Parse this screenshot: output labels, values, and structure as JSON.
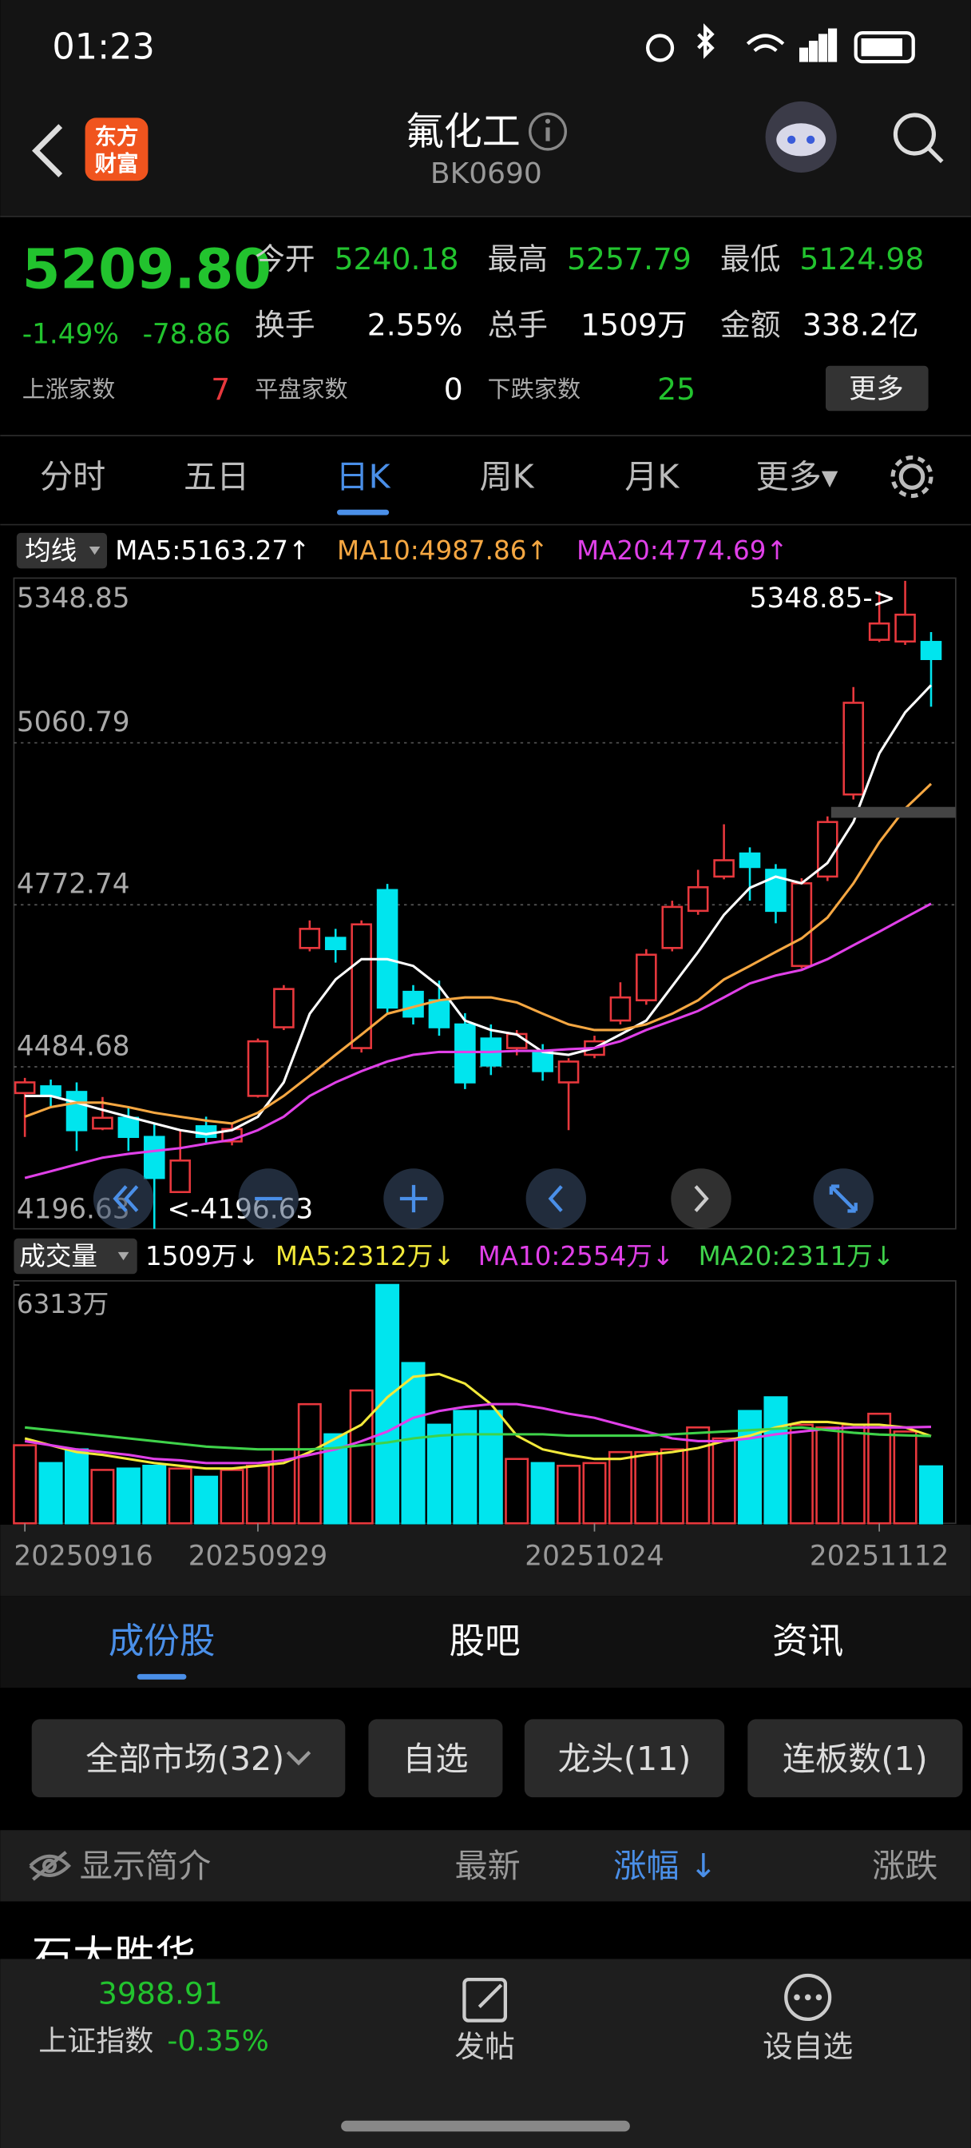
{
  "status_bar": {
    "time": "01:23"
  },
  "header": {
    "logo": [
      "东方",
      "财富"
    ],
    "title": "氟化工",
    "code": "BK0690"
  },
  "quote": {
    "price": "5209.80",
    "change_pct": "-1.49%",
    "change": "-78.86",
    "fields": [
      {
        "label": "今开",
        "value": "5240.18"
      },
      {
        "label": "最高",
        "value": "5257.79"
      },
      {
        "label": "最低",
        "value": "5124.98"
      },
      {
        "label": "换手",
        "value": "2.55%"
      },
      {
        "label": "总手",
        "value": "1509万"
      },
      {
        "label": "金额",
        "value": "338.2亿"
      }
    ],
    "breadth": [
      {
        "label": "上涨家数",
        "value": "7"
      },
      {
        "label": "平盘家数",
        "value": "0"
      },
      {
        "label": "下跌家数",
        "value": "25"
      }
    ],
    "more": "更多"
  },
  "period_tabs": {
    "items": [
      "分时",
      "五日",
      "日K",
      "周K",
      "月K",
      "更多▾"
    ],
    "active": 2
  },
  "chart_data": [
    {
      "type": "candlestick",
      "ma_button": "均线",
      "up_color": "#e8383d",
      "down_color": "#00e5ee",
      "ylim": [
        4196.63,
        5348.85
      ],
      "yticks": [
        5348.85,
        5060.79,
        4772.74,
        4484.68,
        4196.63
      ],
      "grid": true,
      "open": [
        4438,
        4450,
        4440,
        4375,
        4394,
        4360,
        4262,
        4379,
        4352,
        4433,
        4555,
        4696,
        4714,
        4518,
        4799,
        4618,
        4603,
        4560,
        4535,
        4518,
        4511,
        4457,
        4506,
        4567,
        4603,
        4696,
        4762,
        4823,
        4864,
        4835,
        4664,
        4823,
        4969,
        5244,
        5241,
        5240.18
      ],
      "high": [
        4465,
        4462,
        4457,
        4431,
        4413,
        4384,
        4372,
        4396,
        4384,
        4535,
        4630,
        4745,
        4730,
        4745,
        4810,
        4630,
        4638,
        4580,
        4560,
        4550,
        4525,
        4500,
        4540,
        4635,
        4694,
        4780,
        4835,
        4916,
        4875,
        4845,
        4820,
        4930,
        5160,
        5330,
        5348.85,
        5257.79
      ],
      "low": [
        4360,
        4413,
        4335,
        4372,
        4335,
        4196.63,
        4262,
        4350,
        4345,
        4430,
        4550,
        4690,
        4670,
        4510,
        4580,
        4560,
        4540,
        4445,
        4470,
        4505,
        4460,
        4372,
        4500,
        4560,
        4595,
        4690,
        4755,
        4818,
        4780,
        4740,
        4660,
        4815,
        4960,
        5240,
        5235,
        5124.98
      ],
      "close": [
        4457,
        4433,
        4372,
        4394,
        4360,
        4287,
        4318,
        4360,
        4374,
        4530,
        4623,
        4730,
        4694,
        4738,
        4590,
        4574,
        4555,
        4457,
        4487,
        4543,
        4477,
        4494,
        4530,
        4608,
        4684,
        4769,
        4804,
        4852,
        4840,
        4762,
        4811,
        4920,
        5132,
        5273,
        5288.66,
        5209.8
      ],
      "series": [
        {
          "name": "MA5",
          "legend": "MA5:5163.27↑",
          "color": "#ffffff",
          "values": [
            4433,
            4433,
            4421,
            4408,
            4396,
            4384,
            4372,
            4365,
            4372,
            4396,
            4457,
            4579,
            4640,
            4676,
            4676,
            4664,
            4628,
            4567,
            4550,
            4542,
            4511,
            4506,
            4518,
            4542,
            4567,
            4628,
            4689,
            4755,
            4803,
            4823,
            4811,
            4847,
            4920,
            5042,
            5115,
            5163.27
          ]
        },
        {
          "name": "MA10",
          "legend": "MA10:4987.86↑",
          "color": "#f5a742",
          "values": [
            4396,
            4413,
            4421,
            4421,
            4413,
            4403,
            4396,
            4389,
            4384,
            4403,
            4433,
            4469,
            4506,
            4542,
            4579,
            4591,
            4603,
            4608,
            4608,
            4599,
            4579,
            4560,
            4550,
            4550,
            4560,
            4579,
            4603,
            4640,
            4664,
            4689,
            4713,
            4750,
            4811,
            4884,
            4944,
            4987.86
          ]
        },
        {
          "name": "MA20",
          "legend": "MA20:4774.69↑",
          "color": "#e040e8",
          "values": [
            4287,
            4299,
            4311,
            4323,
            4330,
            4335,
            4340,
            4348,
            4355,
            4372,
            4396,
            4433,
            4457,
            4477,
            4494,
            4506,
            4511,
            4511,
            4511,
            4513,
            4513,
            4516,
            4518,
            4530,
            4550,
            4567,
            4584,
            4608,
            4633,
            4647,
            4657,
            4676,
            4701,
            4725,
            4750,
            4774.69
          ]
        }
      ],
      "annotations": [
        {
          "text": "5348.85->"
        },
        {
          "text": "<-4196.63"
        }
      ]
    },
    {
      "type": "bar",
      "button": "成交量",
      "current_label": "1509万↓",
      "ylim": [
        0,
        6313
      ],
      "yticks": [
        {
          "value": 6313,
          "label": "6313万"
        }
      ],
      "categories": [
        "20250916",
        null,
        null,
        null,
        null,
        null,
        null,
        null,
        null,
        "20250929",
        null,
        null,
        null,
        null,
        null,
        null,
        null,
        null,
        null,
        null,
        null,
        null,
        "20251024",
        null,
        null,
        null,
        null,
        null,
        null,
        null,
        null,
        null,
        null,
        "20251112",
        null,
        null
      ],
      "values": [
        2068,
        1596,
        1959,
        1415,
        1451,
        1524,
        1451,
        1234,
        1415,
        1524,
        1959,
        3156,
        2358,
        3519,
        6313,
        4245,
        2612,
        2975,
        2975,
        1705,
        1596,
        1524,
        1596,
        1887,
        1887,
        1959,
        2540,
        2249,
        2975,
        3338,
        2612,
        2540,
        2612,
        2902,
        2431,
        1509
      ],
      "series": [
        {
          "name": "MA5",
          "legend": "MA5:2312万↓",
          "color": "#f2e93a",
          "values": [
            2249,
            2068,
            1887,
            1814,
            1705,
            1596,
            1524,
            1451,
            1451,
            1524,
            1596,
            1887,
            2249,
            2612,
            3338,
            3882,
            3955,
            3701,
            3156,
            2322,
            1959,
            1814,
            1705,
            1705,
            1814,
            1887,
            1995,
            2177,
            2322,
            2540,
            2685,
            2685,
            2612,
            2612,
            2540,
            2312
          ]
        },
        {
          "name": "MA10",
          "legend": "MA10:2554万↓",
          "color": "#e040e8",
          "values": [
            2177,
            2068,
            1959,
            1887,
            1814,
            1705,
            1669,
            1596,
            1596,
            1596,
            1669,
            1814,
            1959,
            2177,
            2431,
            2794,
            2975,
            3084,
            3156,
            3156,
            3048,
            2902,
            2794,
            2612,
            2431,
            2249,
            2177,
            2177,
            2249,
            2358,
            2431,
            2503,
            2540,
            2540,
            2540,
            2554
          ]
        },
        {
          "name": "MA20",
          "legend": "MA20:2311万↓",
          "color": "#3fd24a",
          "values": [
            2540,
            2467,
            2394,
            2322,
            2249,
            2177,
            2104,
            2032,
            1995,
            1959,
            1959,
            1959,
            1995,
            2068,
            2140,
            2249,
            2322,
            2358,
            2358,
            2358,
            2358,
            2322,
            2322,
            2322,
            2322,
            2358,
            2394,
            2431,
            2467,
            2503,
            2540,
            2467,
            2400,
            2350,
            2330,
            2311
          ]
        }
      ]
    }
  ],
  "sub_tabs": {
    "items": [
      "成份股",
      "股吧",
      "资讯"
    ],
    "active": 0
  },
  "filters": [
    "全部市场(32)",
    "自选",
    "龙头(11)",
    "连板数(1)"
  ],
  "table": {
    "header": [
      "显示简介",
      "最新",
      "涨幅 ↓",
      "涨跌"
    ],
    "rows": [
      [
        "石大胜华"
      ]
    ]
  },
  "bottom_bar": {
    "index_value": "3988.91",
    "index_name": "上证指数",
    "index_change": "-0.35%",
    "actions": [
      "发帖",
      "设自选"
    ]
  }
}
